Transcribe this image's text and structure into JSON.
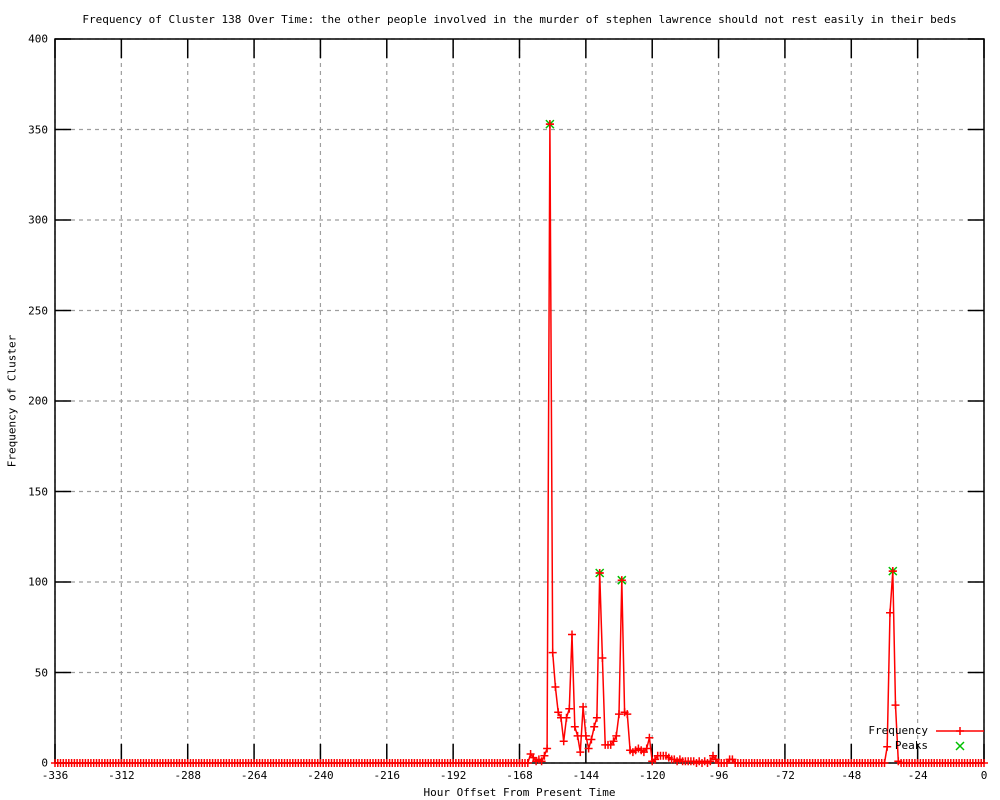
{
  "chart_data": {
    "type": "line",
    "title": "Frequency of Cluster 138 Over Time: the other people involved in the murder of stephen lawrence should not rest easily in their beds",
    "xlabel": "Hour Offset From Present Time",
    "ylabel": "Frequency of Cluster",
    "xlim": [
      -336,
      0
    ],
    "ylim": [
      0,
      400
    ],
    "x_ticks": [
      -336,
      -312,
      -288,
      -264,
      -240,
      -216,
      -192,
      -168,
      -144,
      -120,
      -96,
      -72,
      -48,
      -24,
      0
    ],
    "y_ticks": [
      0,
      50,
      100,
      150,
      200,
      250,
      300,
      350,
      400
    ],
    "grid": true,
    "legend_position": "bottom-right",
    "colors": {
      "frequency": "#ff0000",
      "peaks": "#00c000",
      "grid": "#9e9e9e",
      "border": "#000000"
    },
    "series": [
      {
        "name": "Frequency",
        "color": "#ff0000",
        "marker": "plus",
        "style": "linespoints",
        "x_start": -336,
        "x_end": 0,
        "x_step": 1,
        "default_value": 0,
        "nonzero_values": {
          "-164": 5,
          "-163": 3,
          "-162": 1,
          "-161": 2,
          "-160": 1,
          "-159": 4,
          "-158": 8,
          "-157": 353,
          "-156": 61,
          "-155": 42,
          "-154": 28,
          "-153": 25,
          "-152": 12,
          "-151": 25,
          "-150": 30,
          "-149": 71,
          "-148": 20,
          "-147": 15,
          "-146": 6,
          "-145": 31,
          "-144": 15,
          "-143": 8,
          "-142": 13,
          "-141": 20,
          "-140": 25,
          "-139": 105,
          "-138": 58,
          "-137": 10,
          "-136": 10,
          "-135": 10,
          "-134": 12,
          "-133": 15,
          "-132": 27,
          "-131": 101,
          "-130": 28,
          "-129": 27,
          "-128": 7,
          "-127": 6,
          "-126": 7,
          "-125": 8,
          "-124": 7,
          "-123": 6,
          "-122": 8,
          "-121": 14,
          "-120": 1,
          "-119": 2,
          "-118": 4,
          "-117": 4,
          "-116": 4,
          "-115": 4,
          "-114": 3,
          "-113": 2,
          "-112": 2,
          "-111": 1,
          "-110": 2,
          "-109": 1,
          "-108": 1,
          "-107": 1,
          "-106": 1,
          "-105": 1,
          "-103": 1,
          "-101": 1,
          "-99": 1,
          "-98": 4,
          "-97": 2,
          "-92": 2,
          "-91": 2,
          "-35": 9,
          "-34": 83,
          "-33": 106,
          "-32": 32,
          "-31": 1
        }
      },
      {
        "name": "Peaks",
        "color": "#00c000",
        "marker": "cross",
        "style": "points",
        "x": [
          -157,
          -139,
          -131,
          -33
        ],
        "y": [
          353,
          105,
          101,
          106
        ]
      }
    ]
  }
}
